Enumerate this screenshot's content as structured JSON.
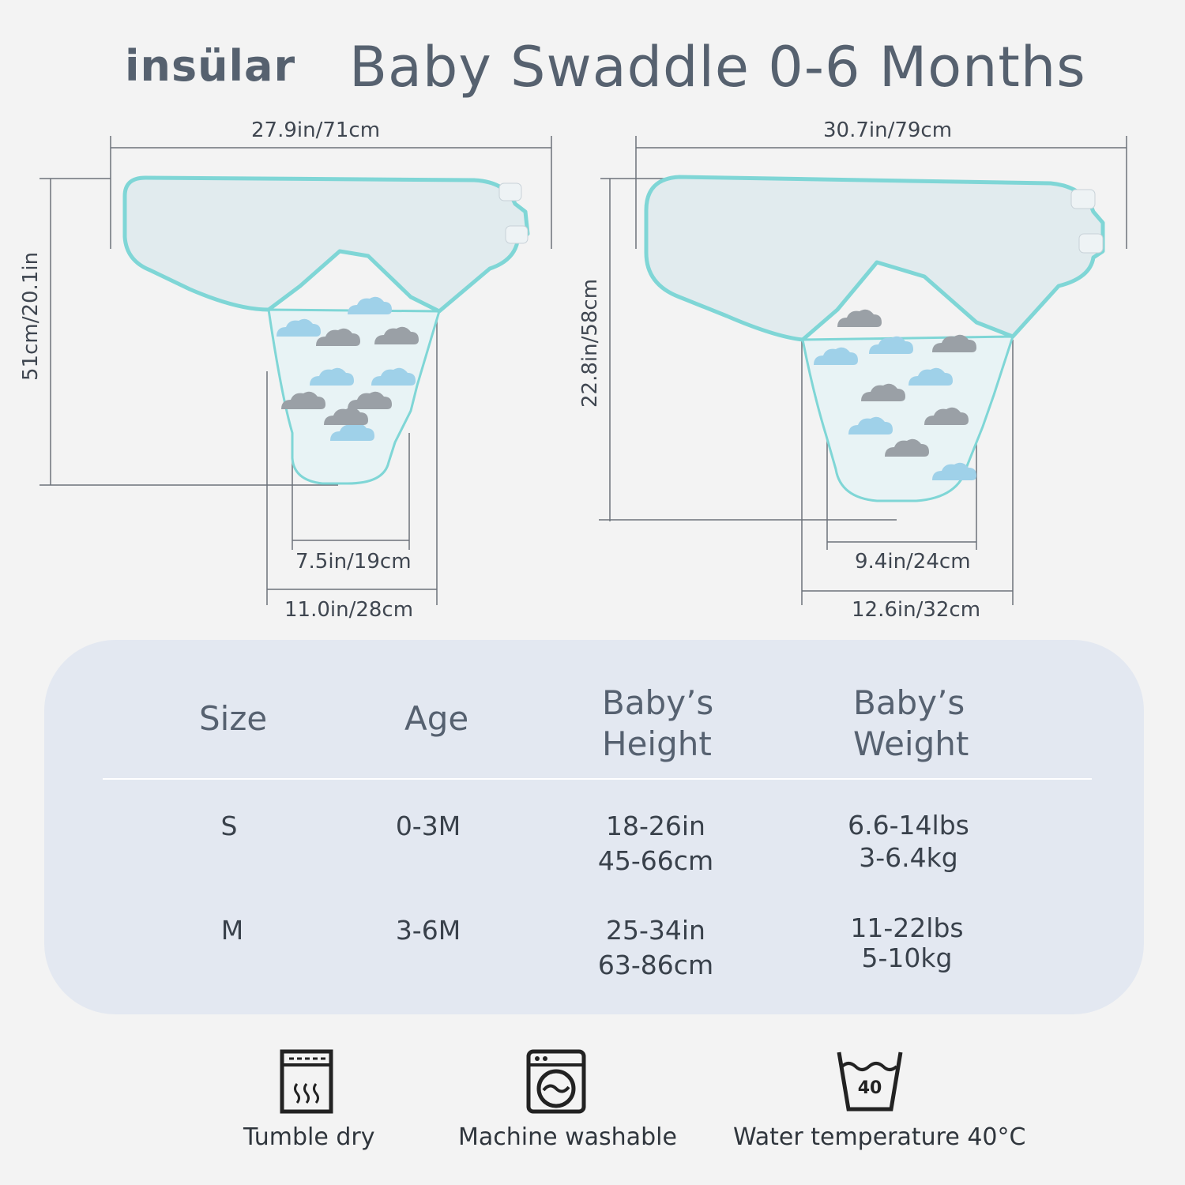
{
  "header": {
    "brand": "insülar",
    "title": "Baby Swaddle 0-6 Months"
  },
  "small_swaddle": {
    "width_label": "27.9in/71cm",
    "height_label": "51cm/20.1in",
    "bottom_inner_label": "7.5in/19cm",
    "bottom_outer_label": "11.0in/28cm"
  },
  "medium_swaddle": {
    "width_label": "30.7in/79cm",
    "height_label": "22.8in/58cm",
    "bottom_inner_label": "9.4in/24cm",
    "bottom_outer_label": "12.6in/32cm"
  },
  "size_table": {
    "headers": {
      "size": "Size",
      "age": "Age",
      "height_line1": "Baby’s",
      "height_line2": "Height",
      "weight_line1": "Baby’s",
      "weight_line2": "Weight"
    },
    "rows": [
      {
        "size": "S",
        "age": "0-3M",
        "height_in": "18-26in",
        "height_cm": "45-66cm",
        "weight_lbs": "6.6-14lbs",
        "weight_kg": "3-6.4kg"
      },
      {
        "size": "M",
        "age": "3-6M",
        "height_in": "25-34in",
        "height_cm": "63-86cm",
        "weight_lbs": "11-22lbs",
        "weight_kg": "5-10kg"
      }
    ]
  },
  "care": [
    {
      "icon": "tumble-dry-icon",
      "label": "Tumble dry"
    },
    {
      "icon": "washing-machine-icon",
      "label": "Machine washable"
    },
    {
      "icon": "wash-tub-icon",
      "label": "Water temperature 40°C",
      "tub_number": "40"
    }
  ],
  "colors": {
    "trim": "#7fd6d6",
    "fabric": "#dfeaf0",
    "cloud_blue": "#9fd1e9",
    "cloud_gray": "#9aa0a6",
    "card": "#e3e8f1"
  }
}
